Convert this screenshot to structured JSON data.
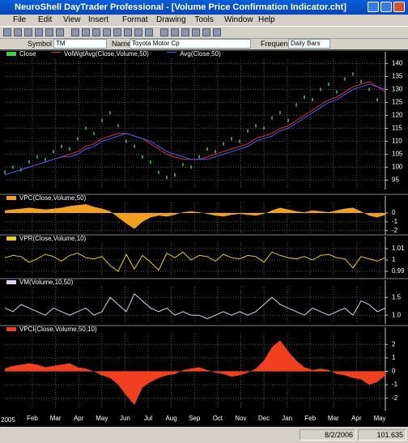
{
  "window": {
    "title": "NeuroShell DayTrader Professional - [Volume Price Confirmation Indicator.cht]"
  },
  "menu": [
    "File",
    "Edit",
    "View",
    "Insert",
    "Format",
    "Drawing",
    "Tools",
    "Window",
    "Help"
  ],
  "toolbar": {
    "symbol_label": "Symbol",
    "symbol": "TM",
    "name_label": "Name",
    "name": "Toyota Motor Cp",
    "frequency_label": "Frequency",
    "frequency": "Daily Bars"
  },
  "x_axis": {
    "categories": [
      "Feb",
      "Mar",
      "Apr",
      "May",
      "Jun",
      "Jul",
      "Aug",
      "Sep",
      "Oct",
      "Nov",
      "Dec",
      "Jan",
      "Feb",
      "Mar",
      "Apr",
      "May"
    ],
    "year": "2005"
  },
  "panels": [
    {
      "type": "price",
      "ylim": [
        92,
        142
      ],
      "yticks": [
        95,
        100,
        105,
        110,
        115,
        120,
        125,
        130,
        135,
        140
      ],
      "series": [
        {
          "name": "Close",
          "color": "#40d040",
          "values": [
            98,
            100,
            99,
            102,
            104,
            103,
            106,
            108,
            107,
            111,
            115,
            113,
            118,
            121,
            116,
            110,
            108,
            104,
            102,
            98,
            96,
            97,
            101,
            100,
            104,
            107,
            106,
            109,
            111,
            110,
            114,
            116,
            115,
            119,
            121,
            118,
            124,
            127,
            126,
            130,
            132,
            129,
            134,
            136,
            133,
            130,
            126,
            122
          ]
        },
        {
          "name": "VolWgtAvg(Close,Volume,50)",
          "color": "#e03030",
          "values": [
            97,
            98,
            99,
            100,
            101,
            102,
            103,
            104,
            105,
            106,
            108,
            109,
            111,
            112,
            113,
            113,
            112,
            111,
            109,
            107,
            105,
            104,
            103,
            103,
            103,
            104,
            105,
            106,
            107,
            108,
            109,
            111,
            112,
            113,
            115,
            116,
            118,
            120,
            122,
            124,
            126,
            127,
            129,
            131,
            132,
            133,
            131,
            129
          ]
        },
        {
          "name": "Avg(Close,50)",
          "color": "#4060ff",
          "values": [
            97,
            98,
            99,
            100,
            101,
            102,
            103,
            104,
            104,
            105,
            107,
            108,
            110,
            111,
            112,
            113,
            112,
            111,
            110,
            108,
            106,
            105,
            104,
            103,
            103,
            103,
            104,
            105,
            106,
            107,
            108,
            110,
            111,
            112,
            114,
            115,
            117,
            119,
            121,
            123,
            125,
            126,
            128,
            130,
            131,
            132,
            131,
            130
          ]
        }
      ]
    },
    {
      "type": "area",
      "ylim": [
        -2.3,
        1.2
      ],
      "yticks": [
        0,
        -1,
        -2
      ],
      "series": [
        {
          "name": "VPC(Close,Volume,50)",
          "color": "#f0a020",
          "values": [
            0.3,
            0.4,
            0.5,
            0.6,
            0.5,
            0.4,
            0.5,
            0.6,
            0.8,
            0.9,
            1.0,
            0.7,
            0.5,
            0.2,
            -0.5,
            -1.2,
            -1.8,
            -1.0,
            -0.5,
            -0.3,
            -0.4,
            -0.2,
            0.1,
            0.2,
            0.1,
            -0.1,
            -0.3,
            -0.4,
            -0.2,
            -0.1,
            -0.2,
            -0.3,
            -0.1,
            0.3,
            0.6,
            0.4,
            0.2,
            0.1,
            0.3,
            0.2,
            0.1,
            0.3,
            0.5,
            0.6,
            0.2,
            -0.3,
            -0.5,
            -0.2
          ]
        }
      ]
    },
    {
      "type": "line",
      "ylim": [
        0.985,
        1.015
      ],
      "yticks": [
        1.01,
        1,
        0.99
      ],
      "series": [
        {
          "name": "VPR(Close,Volume,10)",
          "color": "#e8d020",
          "values": [
            1.002,
            1.004,
            1.003,
            0.998,
            1.001,
            1.005,
            1.003,
            0.999,
            1.004,
            1.006,
            1.002,
            1.001,
            1.003,
            0.995,
            0.99,
            1.005,
            0.992,
            1.004,
            0.998,
            0.991,
            1.006,
            1.002,
            1.007,
            1.0,
            1.004,
            1.003,
            0.999,
            1.005,
            1.002,
            1.001,
            1.004,
            1.003,
            0.998,
            1.007,
            1.004,
            1.002,
            1.001,
            1.003,
            1.0,
            1.004,
            1.005,
            1.002,
            1.001,
            0.993,
            1.003,
            1.001,
            0.999,
            1.002
          ]
        }
      ]
    },
    {
      "type": "line",
      "ylim": [
        0.8,
        1.8
      ],
      "yticks": [
        1.5,
        {
          "value": 1,
          "label": "1.0"
        }
      ],
      "series": [
        {
          "name": "VM(Volume,10,50)",
          "color": "#e0d0f0",
          "values": [
            1.2,
            1.1,
            1.3,
            1.2,
            1.1,
            1.0,
            1.2,
            1.1,
            1.0,
            1.1,
            1.2,
            1.0,
            1.1,
            1.5,
            1.3,
            1.1,
            1.6,
            1.4,
            1.2,
            1.1,
            1.2,
            1.0,
            1.1,
            1.0,
            1.0,
            0.9,
            1.0,
            1.1,
            1.0,
            1.1,
            1.0,
            1.1,
            1.3,
            1.5,
            1.3,
            1.2,
            1.1,
            1.0,
            1.2,
            1.1,
            1.0,
            1.1,
            1.2,
            1.0,
            1.4,
            1.3,
            1.1,
            1.2
          ]
        }
      ]
    },
    {
      "type": "area",
      "ylim": [
        -2.8,
        2.8
      ],
      "yticks": [
        2,
        1,
        0,
        -1,
        -2
      ],
      "series": [
        {
          "name": "VPCI(Close,Volume,50,10)",
          "color": "#f04020",
          "values": [
            0.2,
            0.4,
            0.5,
            0.6,
            0.5,
            0.3,
            0.4,
            0.5,
            0.6,
            0.3,
            0.2,
            0.0,
            -0.3,
            -0.5,
            -1.0,
            -1.8,
            -2.5,
            -1.2,
            -0.8,
            -0.5,
            -0.3,
            -0.2,
            0.1,
            0.2,
            0.3,
            0.1,
            -0.1,
            -0.2,
            -0.4,
            -0.3,
            -0.1,
            0.2,
            0.8,
            1.8,
            2.3,
            1.5,
            0.8,
            0.3,
            0.1,
            0.2,
            0.1,
            -0.2,
            -0.3,
            -0.5,
            -0.6,
            -1.0,
            -0.8,
            -0.3
          ]
        }
      ]
    }
  ],
  "status": {
    "date": "8/2/2006",
    "value": "101.635"
  }
}
